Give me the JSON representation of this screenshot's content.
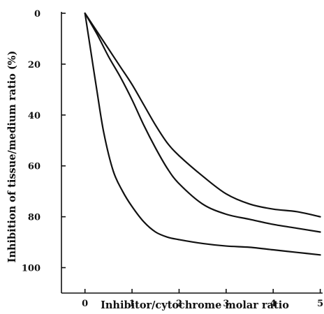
{
  "chart_data": {
    "type": "line",
    "title": "",
    "xlabel": "Inhibitor/cytochrome molar ratio",
    "ylabel": "Inhibition of tissue/medium ratio (%)",
    "xlim": [
      -0.5,
      5.05
    ],
    "ylim": [
      0,
      110
    ],
    "y_inverted": true,
    "grid": false,
    "x_ticks": [
      0,
      1,
      2,
      3,
      4,
      5
    ],
    "y_ticks": [
      0,
      20,
      40,
      60,
      80,
      100
    ],
    "series": [
      {
        "x": [
          0,
          0.25,
          0.5,
          0.75,
          1.0,
          1.25,
          1.5,
          1.75,
          2.0,
          2.5,
          3.0,
          3.5,
          4.0,
          4.5,
          5.0
        ],
        "values": [
          0,
          7,
          14,
          21,
          28,
          36,
          44,
          51,
          56,
          64,
          71,
          75,
          77,
          78,
          80
        ]
      },
      {
        "x": [
          0,
          0.25,
          0.5,
          0.75,
          1.0,
          1.25,
          1.5,
          1.75,
          2.0,
          2.5,
          3.0,
          3.5,
          4.0,
          4.5,
          5.0
        ],
        "values": [
          0,
          8,
          17,
          25,
          34,
          44,
          53,
          61,
          67,
          75,
          79,
          81,
          83,
          84.5,
          86
        ]
      },
      {
        "x": [
          0,
          0.1,
          0.25,
          0.4,
          0.6,
          0.8,
          1.0,
          1.25,
          1.5,
          1.75,
          2.0,
          2.5,
          3.0,
          3.5,
          4.0,
          4.5,
          5.0
        ],
        "values": [
          0,
          12,
          30,
          47,
          62,
          70,
          76,
          82,
          86,
          88,
          89,
          90.5,
          91.5,
          92,
          93,
          94,
          95
        ]
      }
    ]
  }
}
